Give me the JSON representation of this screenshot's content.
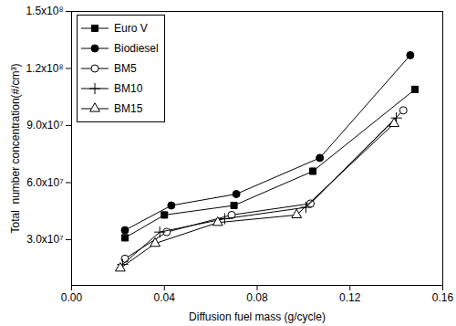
{
  "chart_data": {
    "type": "line",
    "x_label": "Diffusion fuel mass (g/cycle)",
    "y_label": "Total  number concentration(#/cm³)",
    "xlim": [
      0,
      0.16
    ],
    "xticks": [
      {
        "value": 0,
        "label": "0.00"
      },
      0.04,
      0.08,
      0.12,
      0.16
    ],
    "ylim": [
      6000000,
      150000000
    ],
    "yticks": [
      {
        "value": 30000000,
        "label": "3.0x10⁷"
      },
      {
        "value": 60000000,
        "label": "6.0x10⁷"
      },
      {
        "value": 90000000,
        "label": "9.0x10⁷"
      },
      {
        "value": 120000000,
        "label": "1.2x10⁸"
      },
      {
        "value": 150000000,
        "label": "1.5x10⁸"
      }
    ],
    "legend": "top-left",
    "series": [
      {
        "name": "Euro V",
        "color": "#000000",
        "marker": "square",
        "x": [
          0.023,
          0.04,
          0.07,
          0.104,
          0.148
        ],
        "values": [
          31000000,
          43000000,
          48000000,
          66000000,
          109000000
        ]
      },
      {
        "name": "Biodiesel",
        "color": "#000000",
        "marker": "circle",
        "x": [
          0.023,
          0.043,
          0.071,
          0.107,
          0.146
        ],
        "values": [
          35000000,
          48000000,
          54000000,
          73000000,
          127000000
        ]
      },
      {
        "name": "BM5",
        "color": "#000000",
        "marker": "circle-open",
        "x": [
          0.023,
          0.041,
          0.069,
          0.103,
          0.143
        ],
        "values": [
          20000000,
          34000000,
          43000000,
          49000000,
          98000000
        ]
      },
      {
        "name": "BM10",
        "color": "#000000",
        "marker": "plus",
        "x": [
          0.022,
          0.038,
          0.066,
          0.101,
          0.14
        ],
        "values": [
          17000000,
          34000000,
          41000000,
          47000000,
          94000000
        ]
      },
      {
        "name": "BM15",
        "color": "#000000",
        "marker": "triangle-open",
        "x": [
          0.021,
          0.036,
          0.063,
          0.097,
          0.139
        ],
        "values": [
          15000000,
          28000000,
          39000000,
          43000000,
          91000000
        ]
      }
    ]
  }
}
